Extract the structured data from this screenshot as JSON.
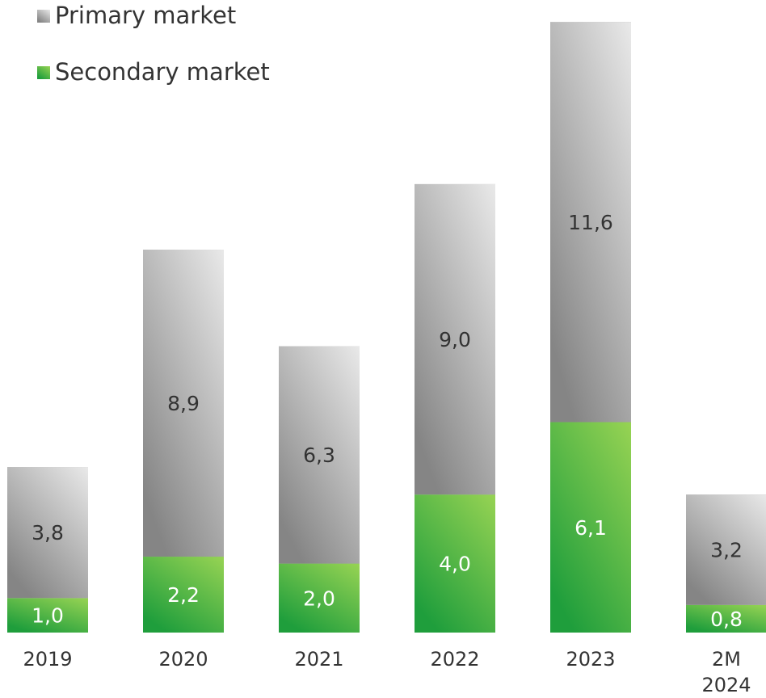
{
  "chart_data": {
    "type": "stacked_bar",
    "categories": [
      "2019",
      "2020",
      "2021",
      "2022",
      "2023",
      "2M 2024"
    ],
    "series": [
      {
        "name": "Secondary market",
        "color": "#1f9e3c",
        "values": [
          1.0,
          2.2,
          2.0,
          4.0,
          6.1,
          0.8
        ],
        "value_labels": [
          "1,0",
          "2,2",
          "2,0",
          "4,0",
          "6,1",
          "0,8"
        ]
      },
      {
        "name": "Primary market",
        "color": "#858585",
        "values": [
          3.8,
          8.9,
          6.3,
          9.0,
          11.6,
          3.2
        ],
        "value_labels": [
          "3,8",
          "8,9",
          "6,3",
          "9,0",
          "11,6",
          "3,2"
        ]
      }
    ],
    "legend": "top-left"
  }
}
